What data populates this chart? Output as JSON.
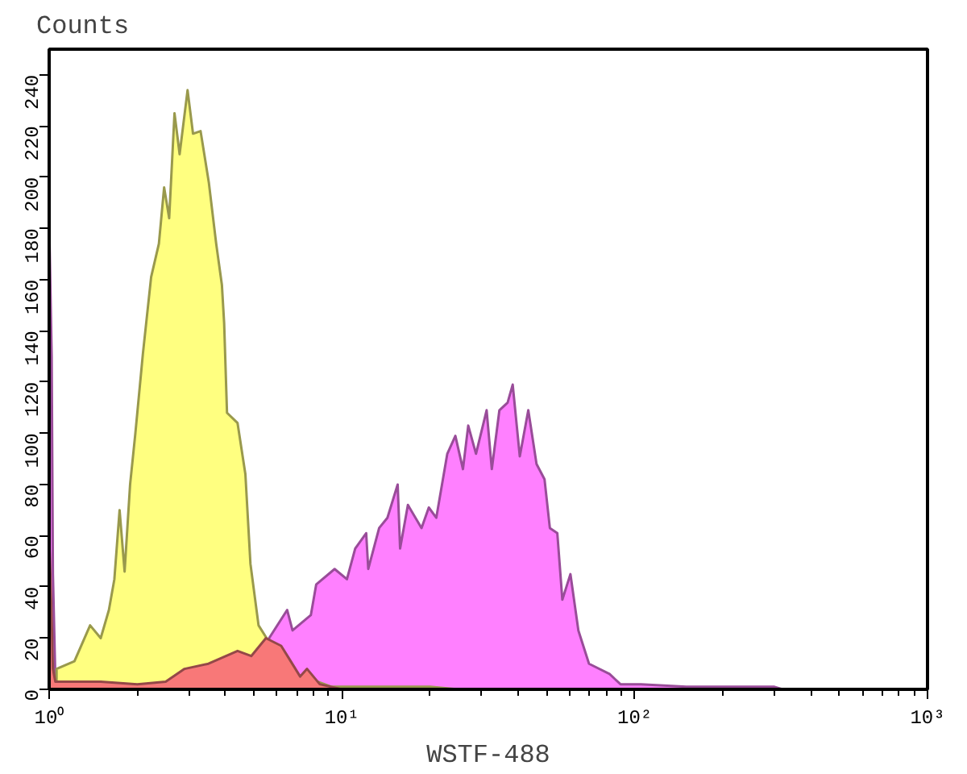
{
  "chart_data": {
    "type": "area",
    "xlabel": "WSTF-488",
    "ylabel": "Counts",
    "log": "x",
    "grid": false,
    "xlim": [
      1,
      1000
    ],
    "xticks": [
      {
        "value": 1,
        "label": "10⁰"
      },
      {
        "value": 10,
        "label": "10¹"
      },
      {
        "value": 100,
        "label": "10²"
      },
      {
        "value": 1000,
        "label": "10³"
      }
    ],
    "ylim": [
      0,
      250
    ],
    "yticks": [
      0,
      20,
      40,
      60,
      80,
      100,
      120,
      140,
      160,
      180,
      200,
      220,
      240
    ],
    "series": [
      {
        "color": "#ff80ff",
        "x": [
          1,
          1.02,
          1.03,
          1.05,
          1.3,
          1.6,
          2.0,
          2.5,
          2.9,
          3.5,
          4.4,
          4.9,
          5.5,
          5.64,
          6.5,
          6.78,
          7.83,
          8.17,
          9.44,
          10.4,
          11.1,
          12.1,
          12.3,
          13.4,
          14.3,
          15.5,
          15.8,
          16.8,
          18.7,
          19.8,
          21.0,
          22.9,
          24.4,
          25.9,
          27.0,
          28.7,
          31.2,
          32.5,
          34.5,
          36.8,
          38.3,
          40.5,
          43.3,
          46.2,
          49.2,
          51.3,
          54.4,
          56.6,
          60.3,
          64.2,
          69.8,
          82.0,
          89.4,
          105,
          150,
          200,
          300,
          320
        ],
        "values": [
          183,
          130,
          45,
          4,
          null,
          null,
          null,
          null,
          null,
          null,
          null,
          null,
          null,
          20,
          31,
          23,
          29,
          41,
          47,
          43,
          55,
          61,
          47,
          63,
          67,
          80,
          55,
          72,
          63,
          71,
          67,
          92,
          99,
          86,
          103,
          92,
          109,
          86,
          109,
          112,
          119,
          91,
          109,
          88,
          82,
          63,
          61,
          35,
          45,
          23,
          10,
          6,
          2,
          2,
          1,
          1,
          1,
          0
        ]
      },
      {
        "color": "#ffff80",
        "x": [
          1.06,
          1.22,
          1.38,
          1.5,
          1.6,
          1.67,
          1.74,
          1.81,
          1.89,
          1.97,
          2.09,
          2.23,
          2.37,
          2.47,
          2.57,
          2.68,
          2.79,
          2.97,
          3.1,
          3.29,
          3.51,
          3.72,
          3.89,
          3.96,
          4.05,
          4.4,
          4.68,
          4.87,
          5.19,
          5.53,
          6.12,
          6.78,
          7.83,
          9.23,
          12,
          20,
          25
        ],
        "values": [
          8,
          11,
          25,
          20,
          31,
          43,
          70,
          46,
          80,
          100,
          131,
          161,
          174,
          196,
          184,
          225,
          209,
          234,
          217,
          218,
          198,
          174,
          158,
          143,
          108,
          104,
          84,
          49,
          25,
          20,
          null,
          null,
          4,
          1,
          1,
          1,
          0
        ]
      },
      {
        "color": "#f87878",
        "x": [
          1,
          1.02,
          1.03,
          1.05,
          1.5,
          2.0,
          2.5,
          2.9,
          3.5,
          4.4,
          4.9,
          5.5,
          6.2,
          6.6,
          7.2,
          7.6,
          8.4,
          10,
          20
        ],
        "values": [
          60,
          28,
          8,
          3,
          3,
          2,
          3,
          8,
          10,
          15,
          13,
          20,
          17,
          12,
          5,
          8,
          2,
          0,
          0
        ]
      }
    ]
  }
}
